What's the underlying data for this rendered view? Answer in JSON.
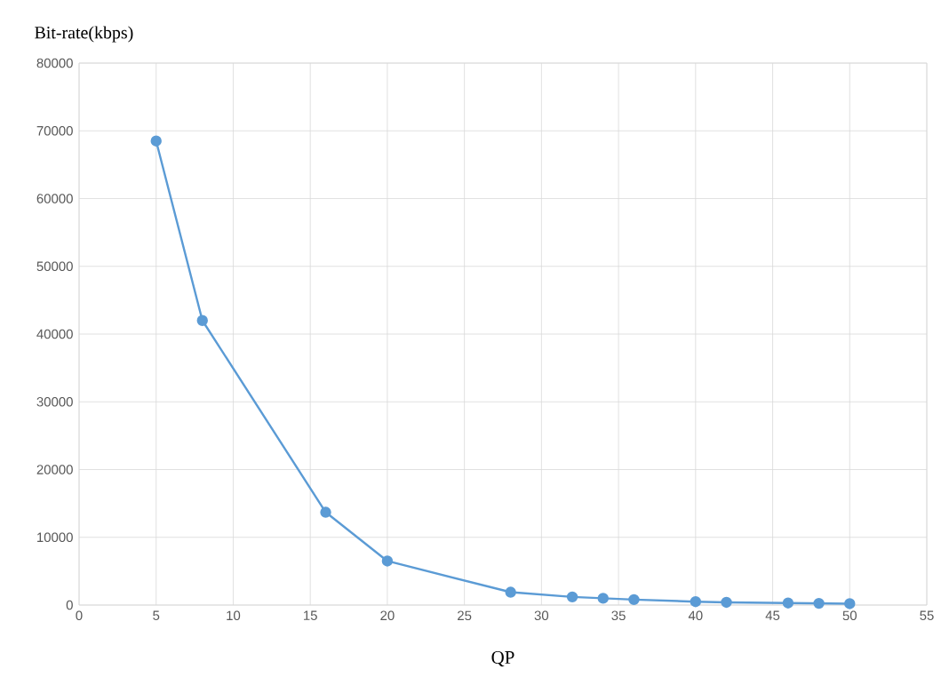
{
  "chart_data": {
    "type": "line",
    "xlabel": "QP",
    "ylabel": "Bit-rate(kbps)",
    "x": [
      5,
      8,
      16,
      20,
      28,
      32,
      34,
      36,
      40,
      42,
      46,
      48,
      50
    ],
    "series": [
      {
        "color": "#5b9bd5",
        "values": [
          68500,
          42000,
          13700,
          6500,
          1900,
          1200,
          1000,
          800,
          500,
          400,
          300,
          250,
          200
        ]
      }
    ],
    "xlim": [
      0,
      55
    ],
    "xticks": [
      0,
      5,
      10,
      15,
      20,
      25,
      30,
      35,
      40,
      45,
      50,
      55
    ],
    "ylim": [
      0,
      80000
    ],
    "yticks": [
      0,
      10000,
      20000,
      30000,
      40000,
      50000,
      60000,
      70000,
      80000
    ],
    "grid": true,
    "marker": "circle",
    "line_style": "solid"
  }
}
